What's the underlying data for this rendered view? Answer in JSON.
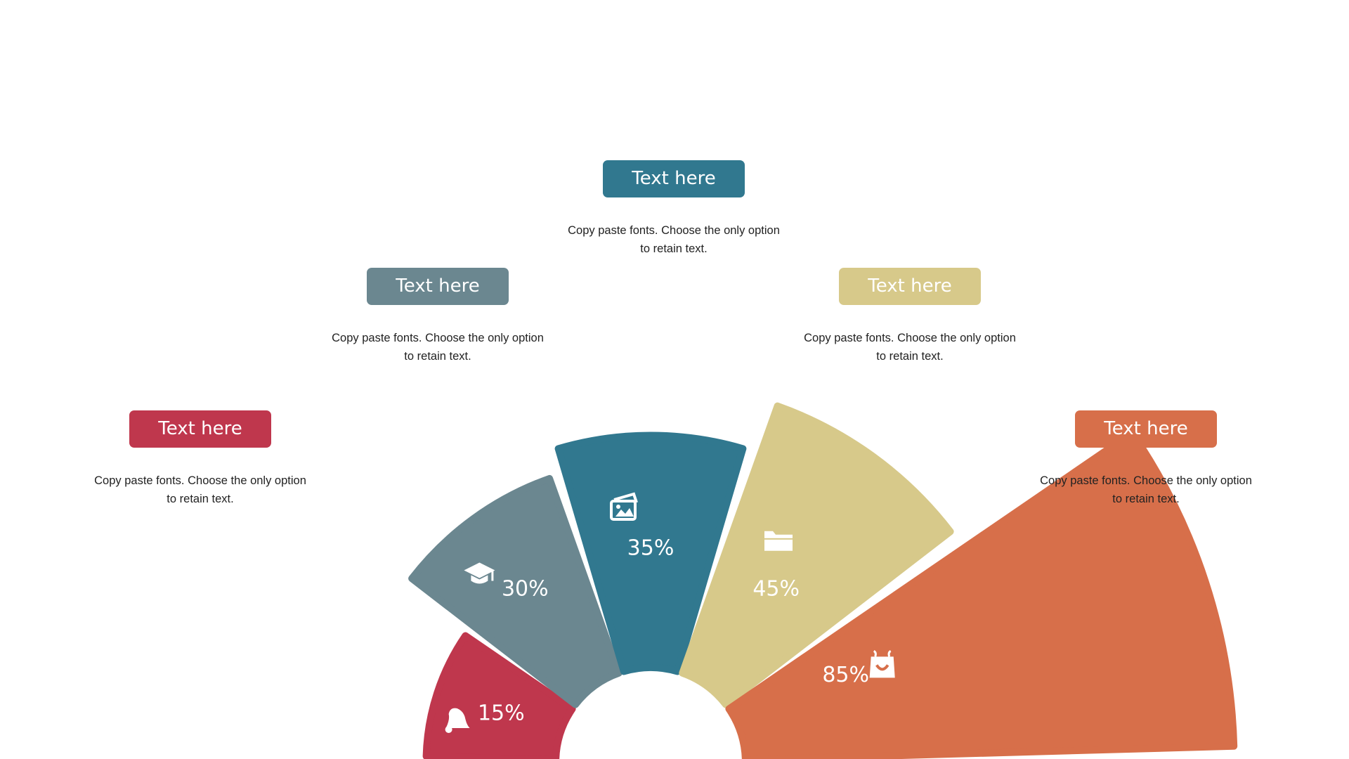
{
  "chart_data": {
    "type": "radial-bar",
    "series": [
      {
        "label": "15%",
        "value": 15,
        "icon": "bell-icon",
        "color": "#BF374D"
      },
      {
        "label": "30%",
        "value": 30,
        "icon": "graduation-cap-icon",
        "color": "#6B8790"
      },
      {
        "label": "35%",
        "value": 35,
        "icon": "image-icon",
        "color": "#31788F"
      },
      {
        "label": "45%",
        "value": 45,
        "icon": "folder-icon",
        "color": "#D7C98A"
      },
      {
        "label": "85%",
        "value": 85,
        "icon": "shopping-bag-icon",
        "color": "#D76F4A"
      }
    ]
  },
  "callouts": [
    {
      "title": "Text here",
      "line1": "Copy paste fonts. Choose the only option",
      "line2": "to retain text.",
      "color": "#BF374D"
    },
    {
      "title": "Text here",
      "line1": "Copy paste fonts. Choose the only option",
      "line2": "to retain text.",
      "color": "#6B8790"
    },
    {
      "title": "Text here",
      "line1": "Copy paste fonts. Choose the only option",
      "line2": "to retain text.",
      "color": "#31788F"
    },
    {
      "title": "Text here",
      "line1": "Copy paste fonts. Choose the only option",
      "line2": "to retain text.",
      "color": "#D7C98A"
    },
    {
      "title": "Text here",
      "line1": "Copy paste fonts. Choose the only option",
      "line2": "to retain text.",
      "color": "#D76F4A"
    }
  ]
}
